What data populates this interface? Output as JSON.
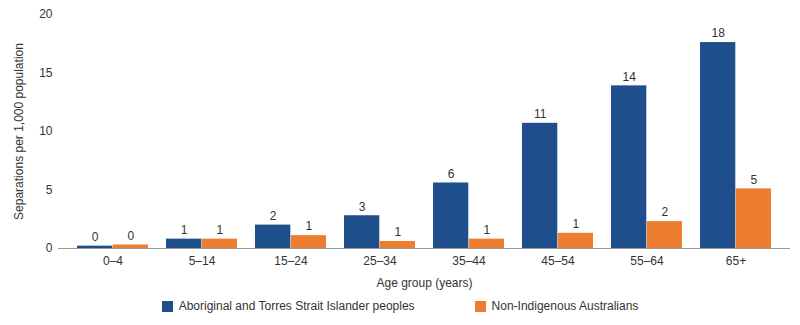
{
  "chart_data": {
    "type": "bar",
    "x_label": "Age group (years)",
    "y_label": "Separations per 1,000 population",
    "categories": [
      "0–4",
      "5–14",
      "15–24",
      "25–34",
      "35–44",
      "45–54",
      "55–64",
      "65+"
    ],
    "series": [
      {
        "name": "Aboriginal and Torres Strait Islander peoples",
        "color": "#1f4e8c",
        "values": [
          0.2,
          0.8,
          2.0,
          2.8,
          5.6,
          10.7,
          13.9,
          17.6
        ],
        "value_labels": [
          "0",
          "1",
          "2",
          "3",
          "6",
          "11",
          "14",
          "18"
        ]
      },
      {
        "name": "Non-Indigenous Australians",
        "color": "#ed7d31",
        "values": [
          0.3,
          0.8,
          1.1,
          0.6,
          0.8,
          1.3,
          2.3,
          5.1
        ],
        "value_labels": [
          "0",
          "1",
          "1",
          "1",
          "1",
          "1",
          "2",
          "5"
        ]
      }
    ],
    "ylim": [
      0,
      20
    ],
    "yticks": [
      0,
      5,
      10,
      15,
      20
    ],
    "grid": false,
    "legend": "bottom",
    "data_labels": true
  }
}
